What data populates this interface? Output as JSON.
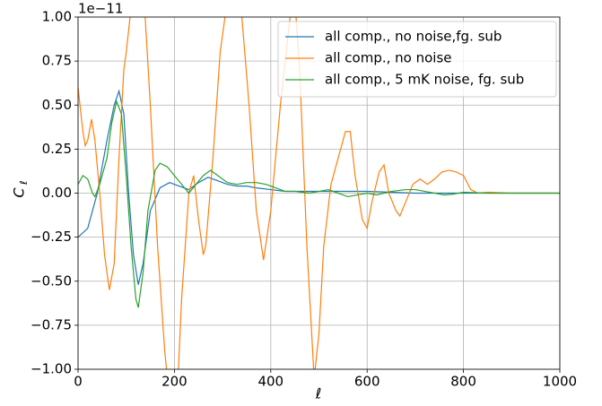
{
  "chart_data": {
    "type": "line",
    "offset_text": "1e−11",
    "x_label": "ℓ",
    "y_label": "C",
    "y_label_sub": "ℓ",
    "xlim": [
      0,
      1000
    ],
    "xticks": [
      0,
      200,
      400,
      600,
      800,
      1000
    ],
    "ylim": [
      -1,
      1
    ],
    "yticks": [
      {
        "value": -1,
        "label": "−1.00"
      },
      {
        "value": -0.75,
        "label": "−0.75"
      },
      {
        "value": -0.5,
        "label": "−0.50"
      },
      {
        "value": -0.25,
        "label": "−0.25"
      },
      {
        "value": 0,
        "label": "0.00"
      },
      {
        "value": 0.25,
        "label": "0.25"
      },
      {
        "value": 0.5,
        "label": "0.50"
      },
      {
        "value": 0.75,
        "label": "0.75"
      },
      {
        "value": 1,
        "label": "1.00"
      }
    ],
    "grid": true,
    "legend": "upper right",
    "series": [
      {
        "name": "all comp., no noise,fg. sub",
        "color": "#1f77b4",
        "x": [
          0,
          20,
          40,
          60,
          75,
          85,
          95,
          105,
          115,
          125,
          135,
          150,
          170,
          190,
          210,
          230,
          250,
          270,
          290,
          310,
          330,
          350,
          370,
          400,
          430,
          460,
          500,
          550,
          600,
          650,
          700,
          750,
          800,
          850,
          900,
          1000
        ],
        "values": [
          -0.25,
          -0.2,
          0.0,
          0.3,
          0.5,
          0.58,
          0.45,
          0.0,
          -0.35,
          -0.52,
          -0.4,
          -0.1,
          0.03,
          0.06,
          0.04,
          0.02,
          0.06,
          0.09,
          0.07,
          0.05,
          0.04,
          0.04,
          0.03,
          0.02,
          0.01,
          0.01,
          0.01,
          0.01,
          0.01,
          0.005,
          0,
          0,
          0,
          0,
          0,
          0
        ]
      },
      {
        "name": "all comp., no noise",
        "color": "#ff7f0e",
        "x": [
          0,
          10,
          15,
          20,
          28,
          35,
          45,
          55,
          65,
          75,
          85,
          95,
          100,
          110,
          120,
          135,
          150,
          165,
          180,
          195,
          205,
          215,
          230,
          240,
          250,
          260,
          265,
          280,
          295,
          310,
          325,
          340,
          355,
          370,
          385,
          400,
          420,
          440,
          450,
          460,
          475,
          490,
          500,
          510,
          525,
          540,
          555,
          565,
          575,
          590,
          600,
          610,
          625,
          635,
          645,
          660,
          668,
          680,
          695,
          710,
          725,
          740,
          755,
          770,
          785,
          800,
          815,
          830,
          850,
          900,
          1000
        ],
        "values": [
          0.6,
          0.35,
          0.27,
          0.3,
          0.42,
          0.3,
          0.0,
          -0.35,
          -0.55,
          -0.4,
          0.2,
          0.7,
          0.8,
          1.05,
          1.4,
          1.2,
          0.5,
          -0.3,
          -0.9,
          -1.3,
          -1.2,
          -0.6,
          0.0,
          0.1,
          -0.15,
          -0.35,
          -0.3,
          0.2,
          0.8,
          1.1,
          1.3,
          1.0,
          0.5,
          -0.1,
          -0.38,
          -0.1,
          0.5,
          1.0,
          1.1,
          0.7,
          -0.3,
          -1.05,
          -0.8,
          -0.3,
          0.05,
          0.2,
          0.35,
          0.35,
          0.1,
          -0.15,
          -0.2,
          -0.05,
          0.12,
          0.16,
          0.0,
          -0.1,
          -0.13,
          -0.05,
          0.05,
          0.08,
          0.05,
          0.08,
          0.12,
          0.13,
          0.12,
          0.1,
          0.02,
          0.0,
          0.005,
          0,
          0
        ]
      },
      {
        "name": "all comp., 5 mK noise, fg. sub",
        "color": "#2ca02c",
        "x": [
          0,
          10,
          20,
          30,
          35,
          45,
          60,
          70,
          80,
          90,
          100,
          110,
          120,
          125,
          135,
          145,
          160,
          170,
          185,
          200,
          215,
          230,
          245,
          260,
          275,
          290,
          310,
          330,
          350,
          370,
          390,
          410,
          430,
          450,
          480,
          500,
          520,
          540,
          560,
          580,
          600,
          620,
          650,
          680,
          700,
          720,
          740,
          760,
          780,
          800,
          850,
          1000
        ],
        "values": [
          0.05,
          0.1,
          0.08,
          0.0,
          -0.02,
          0.05,
          0.2,
          0.4,
          0.52,
          0.45,
          0.1,
          -0.3,
          -0.6,
          -0.65,
          -0.45,
          -0.1,
          0.13,
          0.17,
          0.15,
          0.1,
          0.05,
          0.0,
          0.05,
          0.1,
          0.13,
          0.1,
          0.06,
          0.05,
          0.06,
          0.06,
          0.05,
          0.03,
          0.01,
          0.01,
          0.0,
          0.01,
          0.02,
          0.0,
          -0.02,
          -0.01,
          0.0,
          -0.01,
          0.01,
          0.02,
          0.02,
          0.01,
          0.0,
          -0.01,
          -0.005,
          0.005,
          0,
          0
        ]
      }
    ]
  }
}
